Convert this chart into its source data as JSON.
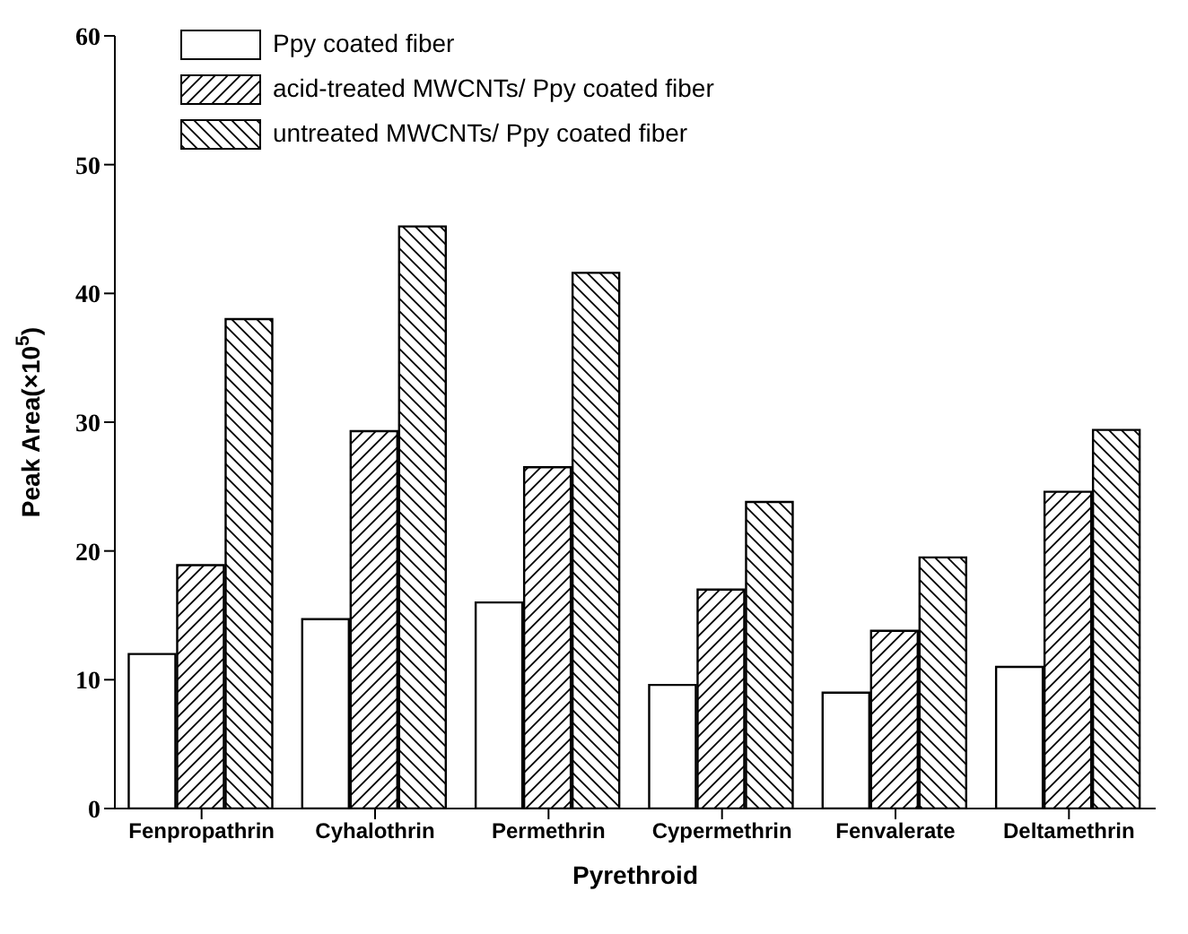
{
  "chart_data": {
    "type": "bar",
    "xlabel": "Pyrethroid",
    "ylabel": "Peak Area(×10$^{5}$)",
    "categories": [
      "Fenpropathrin",
      "Cyhalothrin",
      "Permethrin",
      "Cypermethrin",
      "Fenvalerate",
      "Deltamethrin"
    ],
    "series": [
      {
        "name": "Ppy coated fiber",
        "color": "#000000",
        "values": [
          12.0,
          14.7,
          16.0,
          9.6,
          9.0,
          11.0
        ]
      },
      {
        "name": "acid-treated MWCNTs/ Ppy coated fiber",
        "color": "#000000",
        "values": [
          18.9,
          29.3,
          26.5,
          17.0,
          13.8,
          24.6
        ]
      },
      {
        "name": "untreated MWCNTs/ Ppy coated fiber",
        "color": "#000000",
        "values": [
          38.0,
          45.2,
          41.6,
          23.8,
          19.5,
          29.4
        ]
      }
    ],
    "ylim": [
      0,
      60
    ],
    "yticks": [
      0,
      10,
      20,
      30,
      40,
      50,
      60
    ],
    "legend": "top left"
  }
}
